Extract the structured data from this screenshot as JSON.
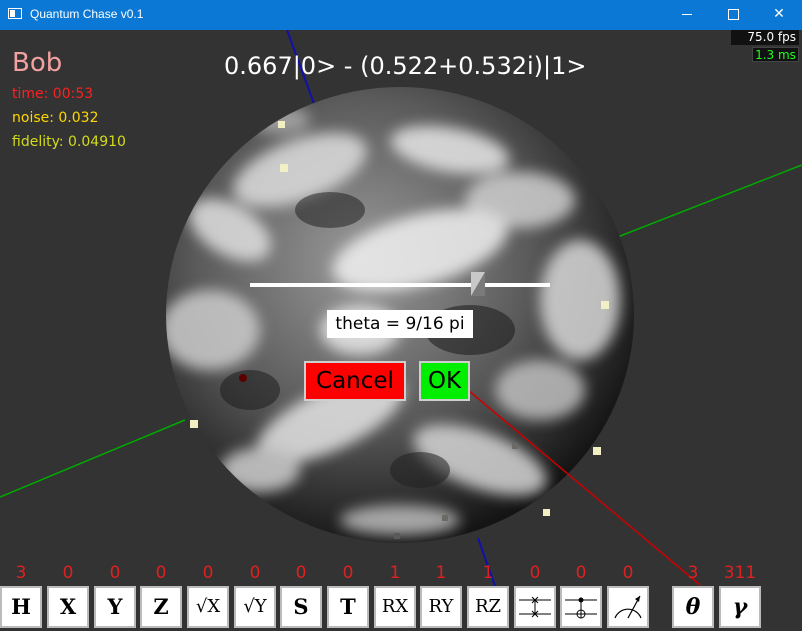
{
  "window": {
    "title": "Quantum Chase v0.1",
    "controls": [
      "minimize",
      "maximize",
      "close"
    ]
  },
  "hud": {
    "player_name": "Bob",
    "time": "time: 00:53",
    "noise": "noise: 0.032",
    "fidelity": "fidelity: 0.04910",
    "state_formula": "0.667|0> - (0.522+0.532i)|1>",
    "fps": "75.0 fps",
    "frame_ms": "1.3 ms"
  },
  "dialog": {
    "theta_label": "theta = 9/16 pi",
    "theta_fraction_of_slider": 0.76,
    "cancel_label": "Cancel",
    "ok_label": "OK"
  },
  "colors": {
    "background": "#333333",
    "titlebar": "#0a78d4",
    "cancel": "#ff0000",
    "ok": "#00ee00",
    "x_axis": "#cc0000",
    "y_axis": "#00aa00",
    "z_axis": "#1010aa"
  },
  "gates": [
    {
      "label": "H",
      "count": "3"
    },
    {
      "label": "X",
      "count": "0"
    },
    {
      "label": "Y",
      "count": "0"
    },
    {
      "label": "Z",
      "count": "0"
    },
    {
      "label": "√X",
      "count": "0"
    },
    {
      "label": "√Y",
      "count": "0"
    },
    {
      "label": "S",
      "count": "0"
    },
    {
      "label": "T",
      "count": "0"
    },
    {
      "label": "RX",
      "count": "1"
    },
    {
      "label": "RY",
      "count": "1"
    },
    {
      "label": "RZ",
      "count": "1"
    },
    {
      "icon": "swap-gate-icon",
      "count": "0"
    },
    {
      "icon": "cnot-gate-icon",
      "count": "0"
    },
    {
      "icon": "measure-gate-icon",
      "count": "0"
    },
    {
      "label": "θ",
      "count": "3"
    },
    {
      "label": "γ",
      "count": "311"
    }
  ]
}
